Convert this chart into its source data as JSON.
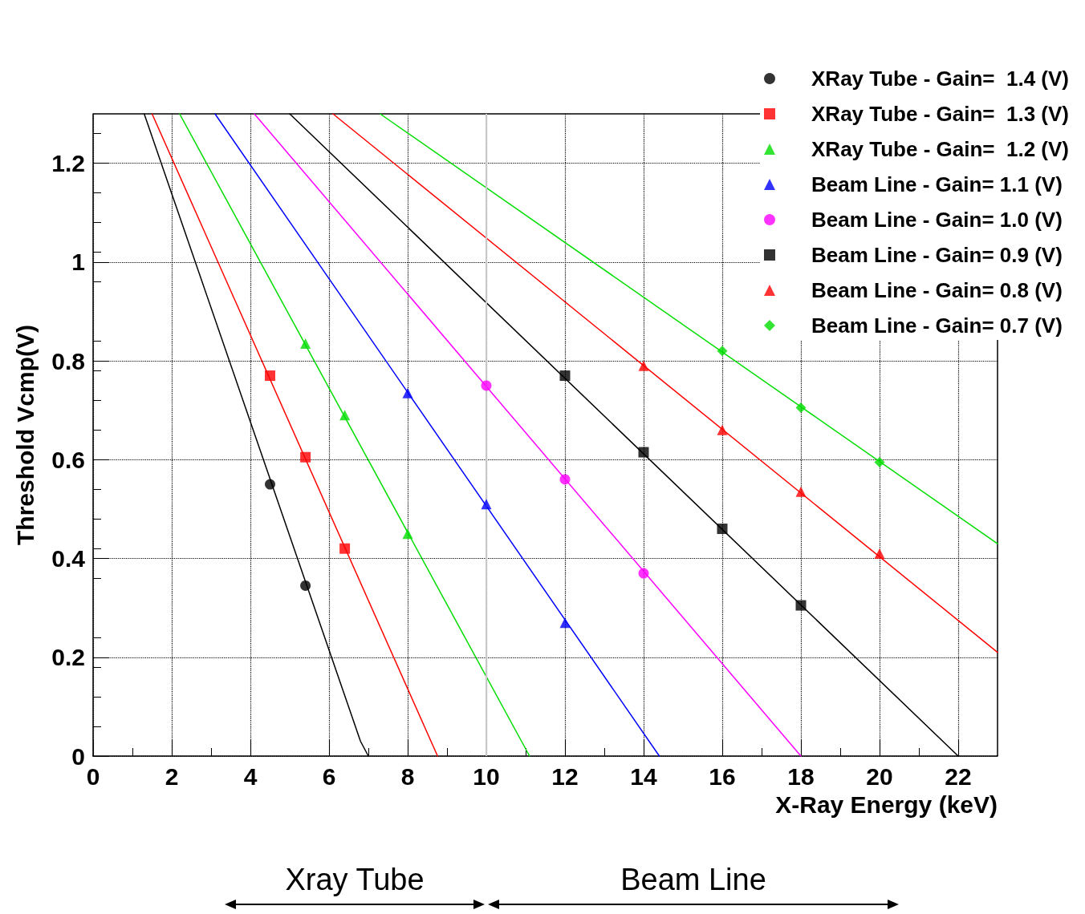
{
  "chart_data": {
    "type": "scatter",
    "xlabel": "X-Ray Energy (keV)",
    "ylabel": "Threshold Vcmp(V)",
    "xlim": [
      0,
      23
    ],
    "xticks": [
      0,
      2,
      4,
      6,
      8,
      10,
      12,
      14,
      16,
      18,
      20,
      22
    ],
    "ylim": [
      0,
      1.3
    ],
    "yticks": [
      0,
      0.2,
      0.4,
      0.6,
      0.8,
      1,
      1.2
    ],
    "grid": true,
    "legend": "top right",
    "ref_lines": [
      {
        "axis": "x",
        "value": 10,
        "color": "#c8c8c8"
      }
    ],
    "annotations": [
      "Xray Tube",
      "Beam Line"
    ],
    "series": [
      {
        "name": "XRay Tube - Gain=  1.4 (V)",
        "marker": "circle",
        "color": "#000000",
        "x": [
          4.5,
          5.4
        ],
        "values": [
          0.55,
          0.345
        ]
      },
      {
        "name": "XRay Tube - Gain=  1.3 (V)",
        "marker": "square",
        "color": "#ff0000",
        "x": [
          4.5,
          5.4,
          6.4
        ],
        "values": [
          0.77,
          0.605,
          0.42
        ]
      },
      {
        "name": "XRay Tube - Gain=  1.2 (V)",
        "marker": "triangle",
        "color": "#00dd00",
        "x": [
          5.4,
          6.4,
          8
        ],
        "values": [
          0.835,
          0.69,
          0.45
        ]
      },
      {
        "name": "Beam Line - Gain= 1.1 (V)",
        "marker": "triangle",
        "color": "#0000ff",
        "x": [
          8,
          10,
          12
        ],
        "values": [
          0.735,
          0.51,
          0.27
        ]
      },
      {
        "name": "Beam Line - Gain= 1.0 (V)",
        "marker": "circle",
        "color": "#ff00ff",
        "x": [
          10,
          12,
          14
        ],
        "values": [
          0.75,
          0.56,
          0.37
        ]
      },
      {
        "name": "Beam Line - Gain= 0.9 (V)",
        "marker": "square",
        "color": "#000000",
        "x": [
          12,
          14,
          16,
          18
        ],
        "values": [
          0.77,
          0.615,
          0.46,
          0.305
        ]
      },
      {
        "name": "Beam Line - Gain= 0.8 (V)",
        "marker": "triangle",
        "color": "#ff0000",
        "x": [
          14,
          16,
          18,
          20
        ],
        "values": [
          0.79,
          0.66,
          0.535,
          0.41
        ]
      },
      {
        "name": "Beam Line - Gain= 0.7 (V)",
        "marker": "diamond",
        "color": "#00dd00",
        "x": [
          16,
          18,
          20
        ],
        "values": [
          0.82,
          0.705,
          0.595
        ]
      },
      {
        "type": "line",
        "marker": "none",
        "color": "#000000",
        "x": [
          1.3,
          6.8,
          7.0
        ],
        "values": [
          1.3,
          0.03,
          0
        ]
      },
      {
        "type": "line",
        "marker": "none",
        "color": "#ff0000",
        "x": [
          1.5,
          8.76
        ],
        "values": [
          1.3,
          0
        ]
      },
      {
        "type": "line",
        "marker": "none",
        "color": "#00dd00",
        "x": [
          2.2,
          11.1
        ],
        "values": [
          1.3,
          0
        ]
      },
      {
        "type": "line",
        "marker": "none",
        "color": "#0000ff",
        "x": [
          3.1,
          14.4
        ],
        "values": [
          1.3,
          0
        ]
      },
      {
        "type": "line",
        "marker": "none",
        "color": "#ff00ff",
        "x": [
          4.1,
          18
        ],
        "values": [
          1.3,
          0
        ]
      },
      {
        "type": "line",
        "marker": "none",
        "color": "#000000",
        "x": [
          5,
          22
        ],
        "values": [
          1.3,
          0
        ]
      },
      {
        "type": "line",
        "marker": "none",
        "color": "#ff0000",
        "x": [
          6.1,
          23
        ],
        "values": [
          1.3,
          0.21
        ]
      },
      {
        "type": "line",
        "marker": "none",
        "color": "#00dd00",
        "x": [
          7.3,
          23
        ],
        "values": [
          1.3,
          0.43
        ]
      }
    ]
  }
}
